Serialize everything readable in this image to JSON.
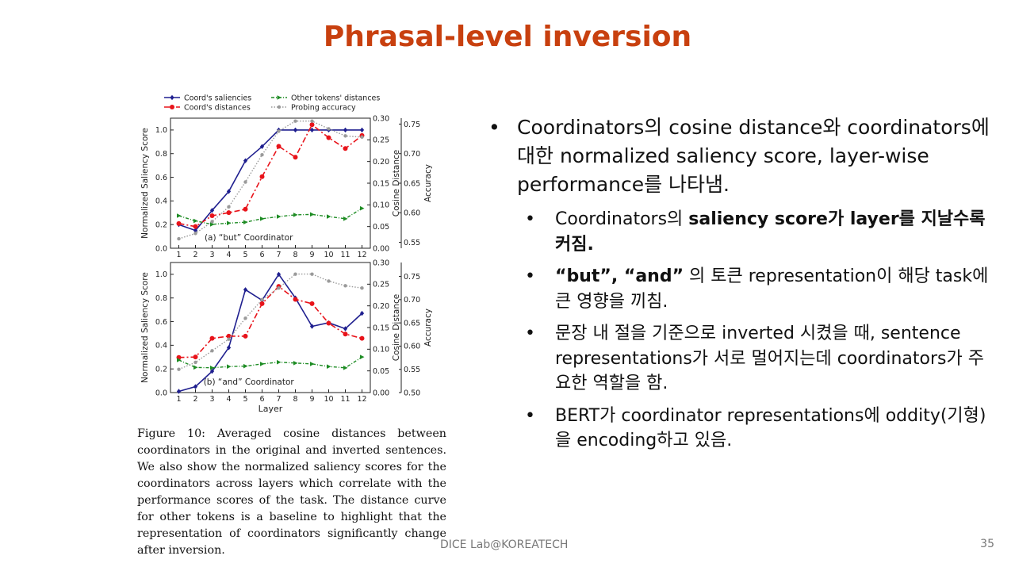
{
  "slide": {
    "title": "Phrasal-level inversion",
    "footer": "DICE Lab@KOREATECH",
    "page_number": "35"
  },
  "figure": {
    "caption": "Figure 10: Averaged cosine distances between coordinators in the original and inverted sentences. We also show the normalized saliency scores for the coordinators across layers which correlate with the performance scores of the task. The distance curve for other tokens is a baseline to highlight that the representation of coordinators significantly change after inversion."
  },
  "bullets": {
    "main": "Coordinators의 cosine distance와 coordinators에 대한 normalized saliency score, layer-wise performance를 나타냄.",
    "sub1_prefix": "Coordinators의 ",
    "sub1_bold": "saliency score가 layer를 지날수록 커짐.",
    "sub2_bold": "“but”, “and”",
    "sub2_rest": " 의 토큰 representation이 해당 task에 큰 영향을 끼침.",
    "sub3": "문장 내 절을 기준으로 inverted 시켰을 때, sentence representations가 서로 멀어지는데 coordinators가 주요한 역할을 함.",
    "sub4": "BERT가 coordinator representations에 oddity(기형)을 encoding하고 있음."
  },
  "chart_data": [
    {
      "type": "line",
      "annotation": "(a) “but” Coordinator",
      "x": [
        1,
        2,
        3,
        4,
        5,
        6,
        7,
        8,
        9,
        10,
        11,
        12
      ],
      "xlabel": "",
      "ylabel": "Normalized Saliency Score",
      "y2label": "Cosine Distance",
      "y3label": "Accuracy",
      "ylim": [
        0,
        1.1
      ],
      "y2lim": [
        0,
        0.3
      ],
      "y3lim": [
        0.54,
        0.76
      ],
      "y_ticks": [
        "0.0",
        "0.2",
        "0.4",
        "0.6",
        "0.8",
        "1.0"
      ],
      "y2_ticks": [
        "0.00",
        "0.05",
        "0.10",
        "0.15",
        "0.20",
        "0.25",
        "0.30"
      ],
      "y3_ticks": [
        "0.55",
        "0.60",
        "0.65",
        "0.70",
        "0.75"
      ],
      "legend": [
        "Coord's saliencies",
        "Coord's distances",
        "Other tokens' distances",
        "Probing accuracy"
      ],
      "series": [
        {
          "name": "Coord's saliencies",
          "axis": "y",
          "color": "#1f1f8f",
          "values": [
            0.2,
            0.15,
            0.32,
            0.48,
            0.74,
            0.86,
            1.0,
            1.0,
            1.0,
            1.0,
            1.0,
            1.0
          ]
        },
        {
          "name": "Coord's distances",
          "axis": "y2",
          "color": "#e8131a",
          "values": [
            0.057,
            0.05,
            0.075,
            0.082,
            0.09,
            0.165,
            0.235,
            0.21,
            0.285,
            0.255,
            0.23,
            0.26
          ]
        },
        {
          "name": "Other tokens' distances",
          "axis": "y2",
          "color": "#1e8c24",
          "values": [
            0.075,
            0.063,
            0.055,
            0.058,
            0.06,
            0.068,
            0.073,
            0.077,
            0.078,
            0.073,
            0.068,
            0.092
          ]
        },
        {
          "name": "Probing accuracy",
          "axis": "y3",
          "color": "#9a9a9a",
          "values": [
            0.556,
            0.565,
            0.585,
            0.61,
            0.652,
            0.698,
            0.738,
            0.755,
            0.755,
            0.742,
            0.73,
            0.728
          ]
        }
      ]
    },
    {
      "type": "line",
      "annotation": "(b) “and” Coordinator",
      "x": [
        1,
        2,
        3,
        4,
        5,
        6,
        7,
        8,
        9,
        10,
        11,
        12
      ],
      "x_ticks": [
        "1",
        "2",
        "3",
        "4",
        "5",
        "6",
        "7",
        "8",
        "9",
        "10",
        "11",
        "12"
      ],
      "xlabel": "Layer",
      "ylabel": "Normalized Saliency Score",
      "y2label": "Cosine Distance",
      "y3label": "Accuracy",
      "ylim": [
        0,
        1.1
      ],
      "y2lim": [
        0,
        0.3
      ],
      "y3lim": [
        0.5,
        0.78
      ],
      "y_ticks": [
        "0.0",
        "0.2",
        "0.4",
        "0.6",
        "0.8",
        "1.0"
      ],
      "y2_ticks": [
        "0.00",
        "0.05",
        "0.10",
        "0.15",
        "0.20",
        "0.25",
        "0.30"
      ],
      "y3_ticks": [
        "0.50",
        "0.55",
        "0.60",
        "0.65",
        "0.70",
        "0.75"
      ],
      "series": [
        {
          "name": "Coord's saliencies",
          "axis": "y",
          "color": "#1f1f8f",
          "values": [
            0.01,
            0.05,
            0.18,
            0.38,
            0.87,
            0.78,
            1.0,
            0.8,
            0.56,
            0.59,
            0.54,
            0.67
          ]
        },
        {
          "name": "Coord's distances",
          "axis": "y2",
          "color": "#e8131a",
          "values": [
            0.081,
            0.082,
            0.125,
            0.13,
            0.13,
            0.205,
            0.245,
            0.215,
            0.205,
            0.16,
            0.135,
            0.125
          ]
        },
        {
          "name": "Other tokens' distances",
          "axis": "y2",
          "color": "#1e8c24",
          "values": [
            0.075,
            0.058,
            0.057,
            0.06,
            0.061,
            0.066,
            0.07,
            0.068,
            0.066,
            0.06,
            0.057,
            0.082
          ]
        },
        {
          "name": "Probing accuracy",
          "axis": "y3",
          "color": "#9a9a9a",
          "values": [
            0.55,
            0.565,
            0.59,
            0.615,
            0.66,
            0.7,
            0.725,
            0.755,
            0.755,
            0.74,
            0.73,
            0.725
          ]
        }
      ]
    }
  ]
}
